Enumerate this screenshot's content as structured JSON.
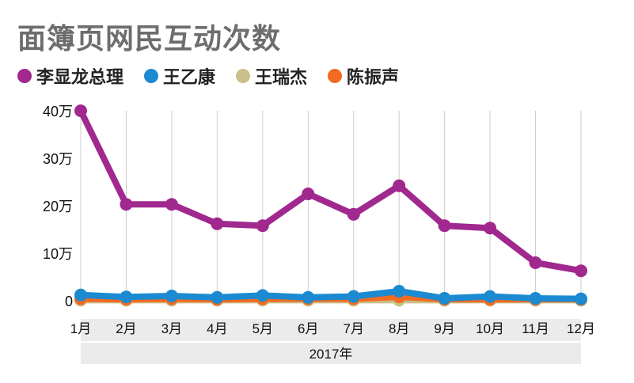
{
  "chart_data": {
    "type": "line",
    "title": "面簿页网民互动次数",
    "categories": [
      "1月",
      "2月",
      "3月",
      "4月",
      "5月",
      "6月",
      "7月",
      "8月",
      "9月",
      "10月",
      "11月",
      "12月"
    ],
    "xlabel": "2017年",
    "ylabel": "",
    "ylim": [
      0,
      40
    ],
    "yticks": [
      "0",
      "10万",
      "20万",
      "30万",
      "40万"
    ],
    "ytick_values": [
      0,
      10,
      20,
      30,
      40
    ],
    "grid": "vertical",
    "legend": "top-left",
    "series": [
      {
        "name": "李显龙总理",
        "color": "#a0288f",
        "values": [
          40,
          20.3,
          20.3,
          16.2,
          15.8,
          22.5,
          18.2,
          24.2,
          15.8,
          15.3,
          8,
          6.3
        ]
      },
      {
        "name": "王乙康",
        "color": "#1b8ad1",
        "values": [
          1.2,
          0.8,
          1.0,
          0.7,
          1.1,
          0.7,
          0.9,
          2.0,
          0.5,
          0.9,
          0.5,
          0.4
        ]
      },
      {
        "name": "王瑞杰",
        "color": "#c9c08a",
        "values": [
          0.1,
          0.1,
          0.1,
          0.1,
          0.1,
          0.1,
          0.1,
          0.1,
          0.1,
          0.1,
          0.1,
          0.1
        ]
      },
      {
        "name": "陈振声",
        "color": "#f26b21",
        "values": [
          0.4,
          0.3,
          0.4,
          0.3,
          0.4,
          0.4,
          0.4,
          0.8,
          0.3,
          0.3,
          0.3,
          0.3
        ]
      }
    ]
  }
}
